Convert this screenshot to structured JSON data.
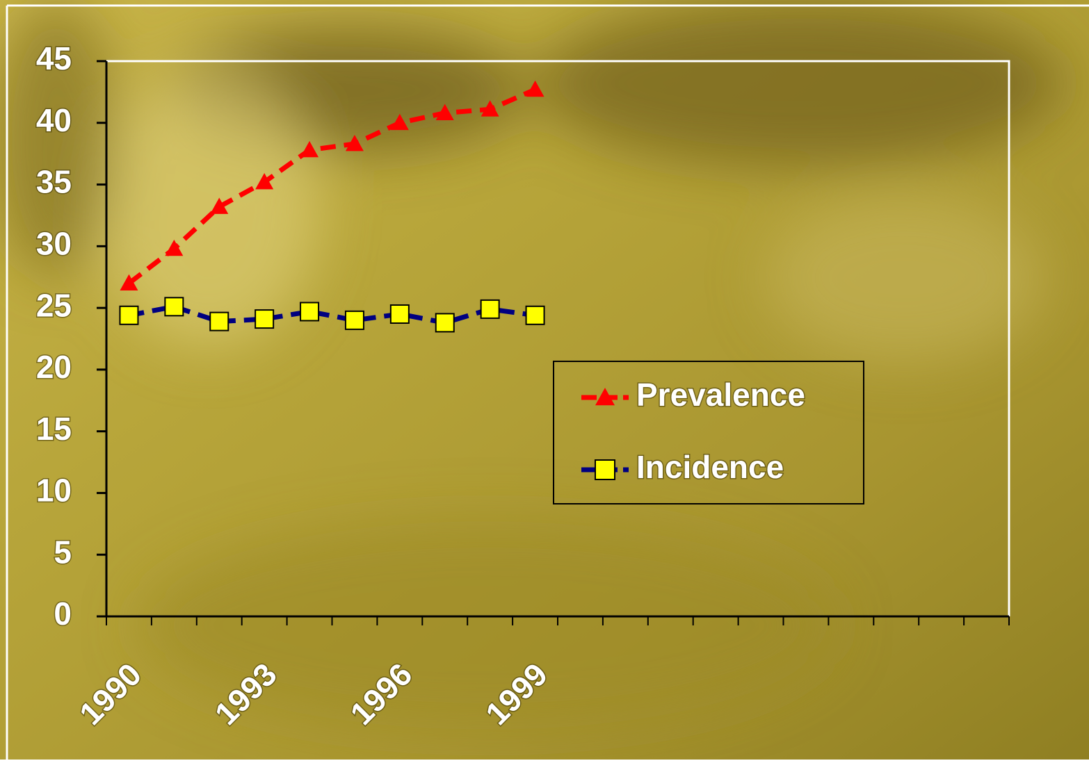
{
  "chart_data": {
    "type": "line",
    "categories": [
      "1990",
      null,
      null,
      "1993",
      null,
      null,
      "1996",
      null,
      null,
      "1999",
      null,
      null,
      null,
      null,
      null,
      null,
      null,
      null,
      null,
      null
    ],
    "series": [
      {
        "name": "Prevalence",
        "color": "#ff0000",
        "marker": "triangle",
        "dashed": true,
        "values": [
          27.0,
          29.8,
          33.2,
          35.2,
          37.8,
          38.3,
          40.0,
          40.8,
          41.1,
          42.7,
          null,
          null,
          null,
          null,
          null,
          null,
          null,
          null,
          null,
          null
        ]
      },
      {
        "name": "Incidence",
        "color": "#000080",
        "marker": "square",
        "marker_fill": "#ffff00",
        "dashed": true,
        "values": [
          24.4,
          25.1,
          23.9,
          24.1,
          24.7,
          24.0,
          24.5,
          23.8,
          24.9,
          24.4,
          null,
          null,
          null,
          null,
          null,
          null,
          null,
          null,
          null,
          null
        ]
      }
    ],
    "ylim": [
      0,
      45
    ],
    "yticks": [
      0,
      5,
      10,
      15,
      20,
      25,
      30,
      35,
      40,
      45
    ]
  }
}
